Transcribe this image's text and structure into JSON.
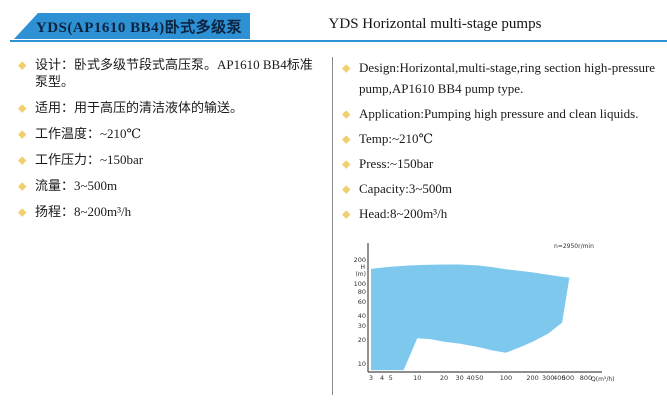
{
  "header": {
    "title_zh": "YDS(AP1610  BB4)卧式多级泵",
    "title_en": "YDS Horizontal multi-stage pumps",
    "accent_color": "#2e91d4"
  },
  "bullet": {
    "glyph": "◆",
    "color": "#f0cf6e"
  },
  "left_column": {
    "items": [
      "设计：卧式多级节段式高压泵。AP1610 BB4标准泵型。",
      "适用：用于高压的清洁液体的输送。",
      "工作温度：~210℃",
      "工作压力：~150bar",
      "流量：3~500m",
      "扬程：8~200m³/h"
    ]
  },
  "right_column": {
    "items": [
      "Design:Horizontal,multi-stage,ring section high-pressure pump,AP1610 BB4 pump type.",
      "Application:Pumping high pressure and clean liquids.",
      "Temp:~210℃",
      "Press:~150bar",
      "Capacity:3~500m",
      "Head:8~200m³/h"
    ]
  },
  "chart_data": {
    "type": "area",
    "title": "",
    "annotation": "n=2950r/min",
    "xlabel": "Q(m³/h)",
    "ylabel_line1": "H",
    "ylabel_line2": "(m)",
    "x_scale": "log",
    "y_scale": "log",
    "x_ticks": [
      3,
      4,
      5,
      10,
      20,
      30,
      40,
      50,
      100,
      200,
      300,
      400,
      500,
      800
    ],
    "y_ticks": [
      10,
      20,
      30,
      40,
      60,
      80,
      100,
      200
    ],
    "xlim": [
      3,
      900
    ],
    "ylim": [
      8,
      230
    ],
    "grid": false,
    "legend": "none",
    "fill_color": "#7ec8ee",
    "axis_color": "#4a4a4a",
    "envelope_QH": [
      [
        3,
        8.4
      ],
      [
        3,
        155
      ],
      [
        5,
        165
      ],
      [
        8,
        171
      ],
      [
        12,
        174
      ],
      [
        20,
        176
      ],
      [
        30,
        176
      ],
      [
        50,
        171
      ],
      [
        70,
        163
      ],
      [
        100,
        153
      ],
      [
        150,
        146
      ],
      [
        200,
        140
      ],
      [
        300,
        131
      ],
      [
        400,
        125
      ],
      [
        520,
        120
      ],
      [
        430,
        33
      ],
      [
        300,
        24
      ],
      [
        200,
        19
      ],
      [
        150,
        16.5
      ],
      [
        100,
        13.8
      ],
      [
        70,
        14.8
      ],
      [
        50,
        16.2
      ],
      [
        30,
        18
      ],
      [
        20,
        19
      ],
      [
        14,
        20.5
      ],
      [
        10,
        21
      ],
      [
        7,
        8.4
      ]
    ]
  }
}
